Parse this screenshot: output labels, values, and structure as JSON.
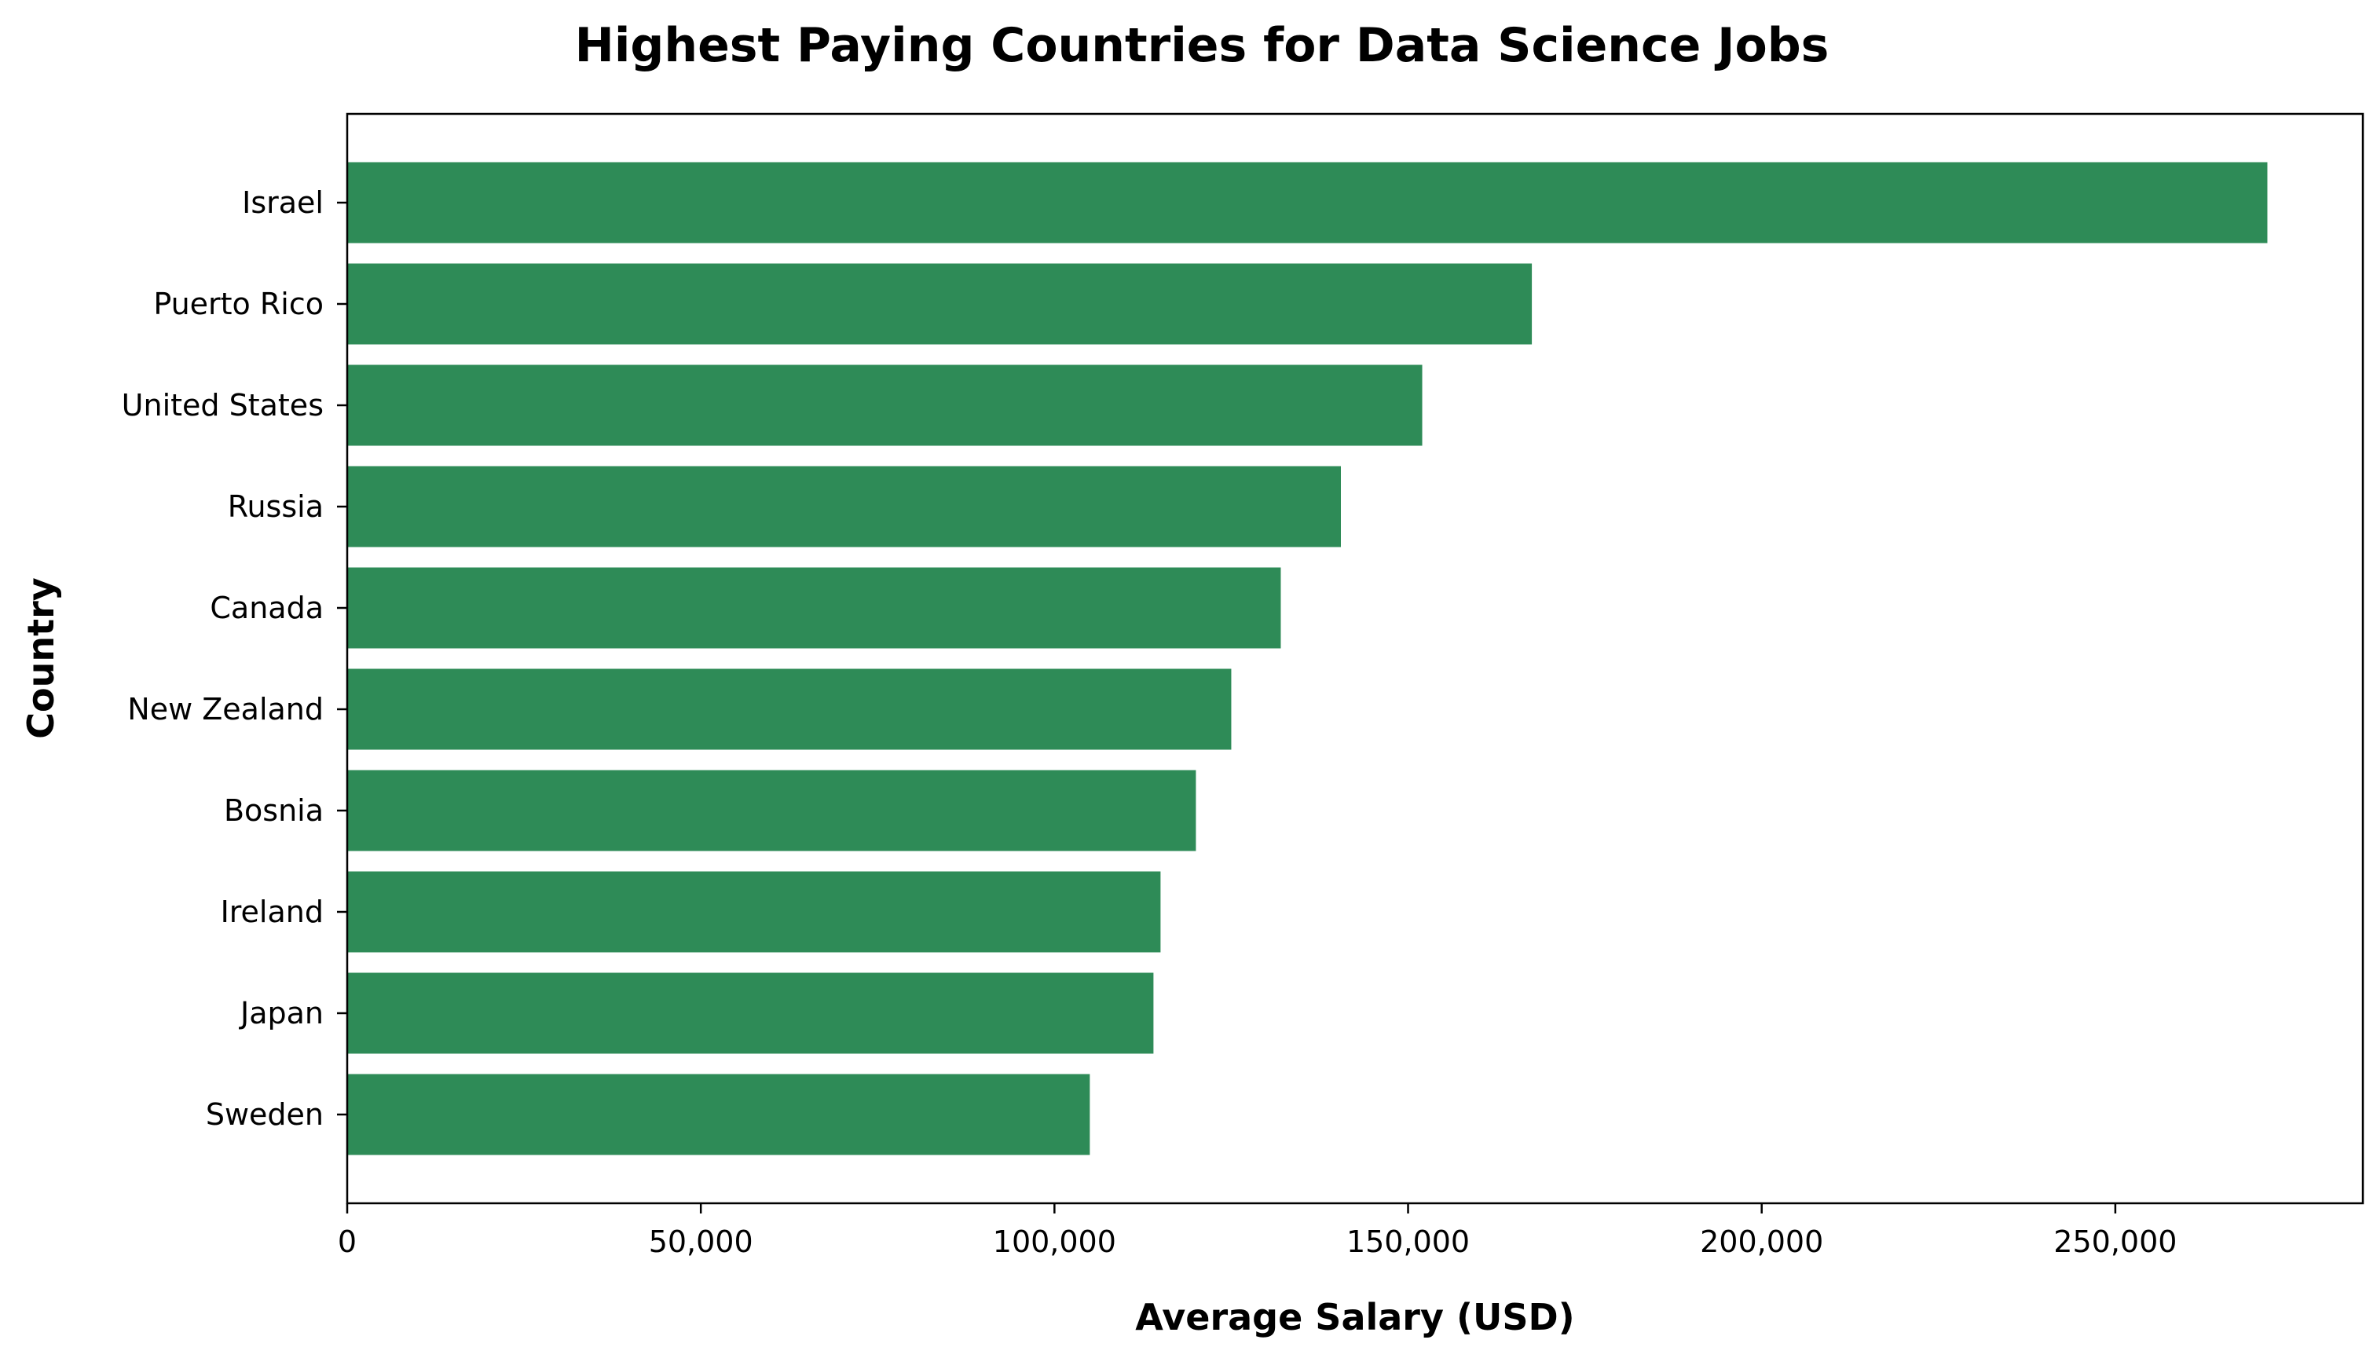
{
  "chart_data": {
    "type": "bar",
    "orientation": "horizontal",
    "title": "Highest Paying Countries for Data Science Jobs",
    "xlabel": "Average Salary (USD)",
    "ylabel": "Country",
    "categories": [
      "Israel",
      "Puerto Rico",
      "United States",
      "Russia",
      "Canada",
      "New Zealand",
      "Bosnia",
      "Ireland",
      "Japan",
      "Sweden"
    ],
    "values": [
      271500,
      167500,
      152000,
      140500,
      132000,
      125000,
      120000,
      115000,
      114000,
      105000
    ],
    "xlim": [
      0,
      285000
    ],
    "xticks": [
      0,
      50000,
      100000,
      150000,
      200000,
      250000
    ],
    "xtick_labels": [
      "0",
      "50,000",
      "100,000",
      "150,000",
      "200,000",
      "250,000"
    ],
    "bar_color": "#2e8b57",
    "grid": false,
    "legend": "none"
  }
}
